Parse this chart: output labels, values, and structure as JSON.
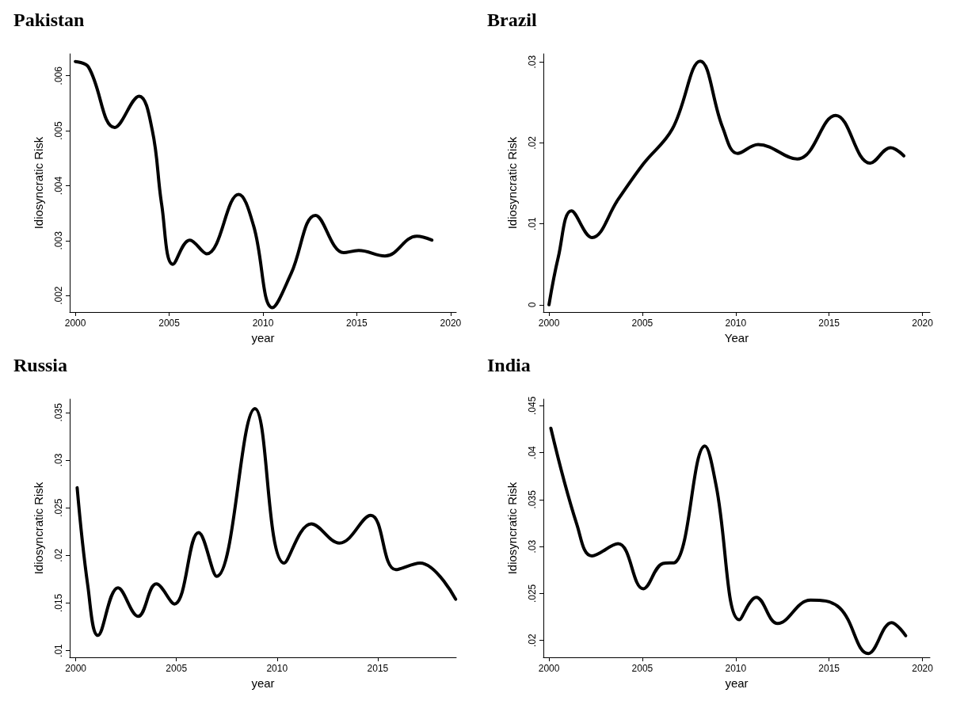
{
  "chart_data": [
    {
      "type": "line",
      "title": "Pakistan",
      "xlabel": "year",
      "ylabel": "Idiosyncratic Risk",
      "color": "#000000",
      "x": [
        2000,
        2000.7,
        2002.1,
        2003.4,
        2004.1,
        2004.6,
        2005.2,
        2006.1,
        2007.0,
        2008.7,
        2009.5,
        2010.5,
        2011.5,
        2012.8,
        2014.3,
        2015.1,
        2016.5,
        2018.2,
        2019.0
      ],
      "values": [
        0.00626,
        0.00616,
        0.00506,
        0.00563,
        0.00501,
        0.00366,
        0.00257,
        0.00301,
        0.00276,
        0.00384,
        0.00327,
        0.00178,
        0.0024,
        0.00346,
        0.00278,
        0.00282,
        0.00272,
        0.00308,
        0.00301
      ],
      "xlim": [
        1999.7,
        2020.3
      ],
      "xticks": [
        2000,
        2005,
        2010,
        2015,
        2020
      ],
      "ylim": [
        0.0017,
        0.0064
      ],
      "yticks": [
        {
          "value": 0.002,
          "label": ".002"
        },
        {
          "value": 0.003,
          "label": ".003"
        },
        {
          "value": 0.004,
          "label": ".004"
        },
        {
          "value": 0.005,
          "label": ".005"
        },
        {
          "value": 0.006,
          "label": ".006"
        }
      ]
    },
    {
      "type": "line",
      "title": "Brazil",
      "xlabel": "Year",
      "ylabel": "Idiosyncratic Risk",
      "color": "#000000",
      "x": [
        2000,
        2000.5,
        2001.2,
        2002.3,
        2003.7,
        2005.05,
        2006.6,
        2008.1,
        2009.3,
        2010.1,
        2011.2,
        2013.3,
        2015.35,
        2017.2,
        2018.3,
        2019.0
      ],
      "values": [
        0,
        0.0059,
        0.0116,
        0.0083,
        0.013,
        0.0174,
        0.0217,
        0.0301,
        0.0219,
        0.0187,
        0.0198,
        0.018,
        0.0234,
        0.0175,
        0.0194,
        0.0184
      ],
      "xlim": [
        1999.7,
        2020.4
      ],
      "xticks": [
        2000,
        2005,
        2010,
        2015,
        2020
      ],
      "ylim": [
        -0.0009,
        0.031
      ],
      "yticks": [
        0,
        {
          "value": 0.01,
          "label": ".01"
        },
        {
          "value": 0.02,
          "label": ".02"
        },
        {
          "value": 0.03,
          "label": ".03"
        }
      ]
    },
    {
      "type": "line",
      "title": "Russia",
      "xlabel": "year",
      "ylabel": "Idiosyncratic Risk",
      "color": "#000000",
      "x": [
        2000.07,
        2000.6,
        2001.1,
        2002.1,
        2003.1,
        2004.0,
        2004.9,
        2006.1,
        2007.0,
        2008.9,
        2010.35,
        2011.7,
        2013.1,
        2014.65,
        2015.9,
        2017.1,
        2018.87
      ],
      "values": [
        0.0271,
        0.0168,
        0.0116,
        0.0166,
        0.0136,
        0.017,
        0.0149,
        0.0224,
        0.0178,
        0.0354,
        0.0192,
        0.0233,
        0.0213,
        0.0242,
        0.0185,
        0.0192,
        0.0154
      ],
      "xlim": [
        1999.7,
        2018.9
      ],
      "xticks": [
        2000,
        2005,
        2010,
        2015
      ],
      "ylim": [
        0.0093,
        0.0364
      ],
      "yticks": [
        {
          "value": 0.01,
          "label": ".01"
        },
        {
          "value": 0.015,
          "label": ".015"
        },
        {
          "value": 0.02,
          "label": ".02"
        },
        {
          "value": 0.025,
          "label": ".025"
        },
        {
          "value": 0.03,
          "label": ".03"
        },
        {
          "value": 0.035,
          "label": ".035"
        }
      ]
    },
    {
      "type": "line",
      "title": "India",
      "xlabel": "year",
      "ylabel": "Idiosyncratic Risk",
      "color": "#000000",
      "x": [
        2000.1,
        2001.5,
        2002.3,
        2003.7,
        2005.05,
        2006.1,
        2006.75,
        2008.35,
        2008.95,
        2010.2,
        2011.1,
        2012.25,
        2014.0,
        2015.55,
        2017.1,
        2018.35,
        2019.1
      ],
      "values": [
        0.0426,
        0.0323,
        0.029,
        0.0303,
        0.0255,
        0.0282,
        0.0283,
        0.0407,
        0.0365,
        0.0222,
        0.0246,
        0.0218,
        0.0243,
        0.0235,
        0.0186,
        0.0219,
        0.0205
      ],
      "xlim": [
        1999.7,
        2020.4
      ],
      "xticks": [
        2000,
        2005,
        2010,
        2015,
        2020
      ],
      "ylim": [
        0.0182,
        0.0457
      ],
      "yticks": [
        {
          "value": 0.02,
          "label": ".02"
        },
        {
          "value": 0.025,
          "label": ".025"
        },
        {
          "value": 0.03,
          "label": ".03"
        },
        {
          "value": 0.035,
          "label": ".035"
        },
        {
          "value": 0.04,
          "label": ".04"
        },
        {
          "value": 0.045,
          "label": ".045"
        }
      ]
    }
  ]
}
